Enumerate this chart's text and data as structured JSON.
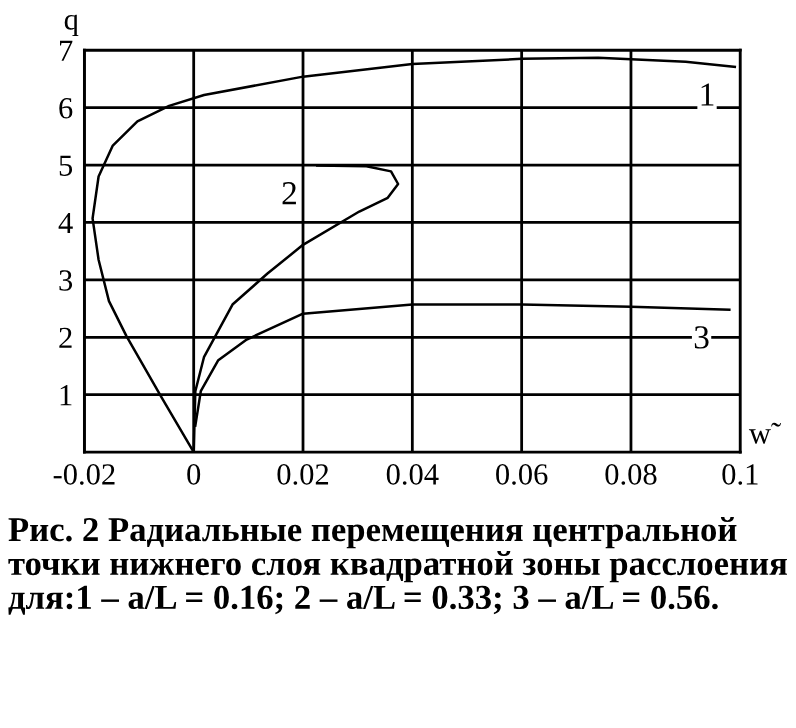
{
  "chart_data": {
    "type": "line",
    "xlabel": "w̃",
    "ylabel": "q",
    "xlim": [
      -0.02,
      0.1
    ],
    "xticks": [
      -0.02,
      0,
      0.02,
      0.04,
      0.06,
      0.08,
      0.1
    ],
    "ylim": [
      0,
      7
    ],
    "yticks": [
      1,
      2,
      3,
      4,
      5,
      6,
      7
    ],
    "grid": true,
    "marker": "none",
    "line_style": "solid",
    "series": [
      {
        "name": "1",
        "color": "#000000",
        "x": [
          0,
          -0.0058,
          -0.0123,
          -0.0155,
          -0.0174,
          -0.0185,
          -0.0174,
          -0.0148,
          -0.0103,
          -0.0045,
          0.0019,
          0.02,
          0.04,
          0.06,
          0.074,
          0.09,
          0.099
        ],
        "values": [
          0,
          0.94,
          2.02,
          2.63,
          3.35,
          4.07,
          4.8,
          5.34,
          5.76,
          6.03,
          6.22,
          6.54,
          6.76,
          6.85,
          6.87,
          6.8,
          6.71
        ]
      },
      {
        "name": "2",
        "color": "#000000",
        "x": [
          0,
          0.0003,
          0.0019,
          0.0071,
          0.0135,
          0.02,
          0.0303,
          0.0355,
          0.0374,
          0.0361,
          0.0316,
          0.0226
        ],
        "values": [
          0,
          1.06,
          1.66,
          2.57,
          3.11,
          3.61,
          4.19,
          4.43,
          4.67,
          4.89,
          4.98,
          4.99
        ]
      },
      {
        "name": "3",
        "color": "#000000",
        "x": [
          0.0003,
          0.0013,
          0.0045,
          0.0097,
          0.02,
          0.04,
          0.06,
          0.08,
          0.098
        ],
        "values": [
          0.46,
          1.06,
          1.6,
          1.96,
          2.41,
          2.57,
          2.57,
          2.53,
          2.48
        ]
      }
    ],
    "annotations": [
      "Рис. 2 Радиальные перемещения центральной точки нижнего слоя квадратной зоны расслоения для:1 – a/L = 0.16; 2 – a/L = 0.33; 3 – a/L = 0.56."
    ]
  }
}
